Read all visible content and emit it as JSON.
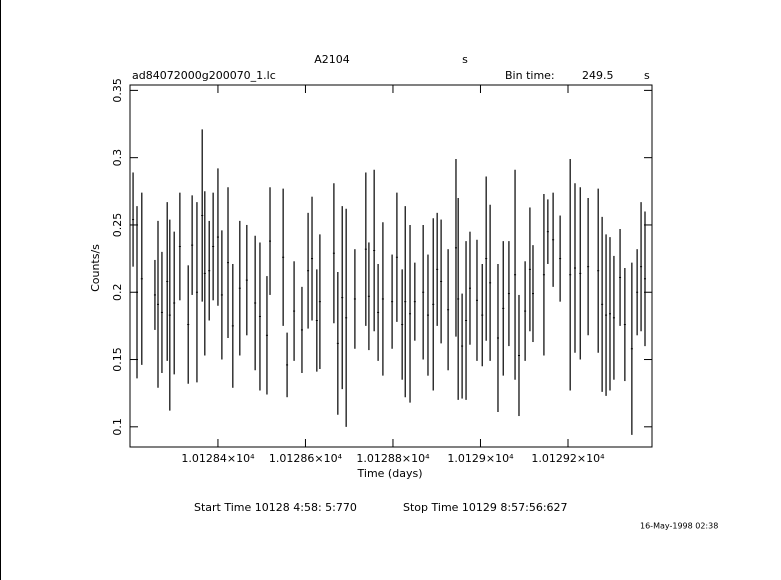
{
  "chart_data": {
    "type": "errorbar",
    "title": "A2104",
    "title_unit": "s",
    "file_name": "ad84072000g200070_1.lc",
    "bin_time_label": "Bin time:",
    "bin_time": 249.5,
    "bin_time_unit": "s",
    "ylabel": "Counts/s",
    "xlabel": "Time (days)",
    "start_time": "Start Time 10128  4:58: 5:770",
    "stop_time": "Stop Time 10129  8:57:56:627",
    "date_stamp": "16-May-1998 02:38",
    "color": "#000000",
    "xlim": [
      10128.199,
      10129.392
    ],
    "ylim": [
      0.085,
      0.354
    ],
    "xticks": [
      {
        "value": 10128.4,
        "label": "1.01284×10⁴"
      },
      {
        "value": 10128.6,
        "label": "1.01286×10⁴"
      },
      {
        "value": 10128.8,
        "label": "1.01288×10⁴"
      },
      {
        "value": 10129.0,
        "label": "1.0129×10⁴"
      },
      {
        "value": 10129.2,
        "label": "1.01292×10⁴"
      }
    ],
    "yticks": [
      0.1,
      0.15,
      0.2,
      0.25,
      0.3,
      0.35
    ],
    "x": [
      10128.206,
      10128.215,
      10128.226,
      10128.256,
      10128.263,
      10128.272,
      10128.284,
      10128.29,
      10128.3,
      10128.313,
      10128.332,
      10128.341,
      10128.352,
      10128.364,
      10128.37,
      10128.38,
      10128.389,
      10128.4,
      10128.409,
      10128.423,
      10128.434,
      10128.45,
      10128.466,
      10128.485,
      10128.496,
      10128.512,
      10128.519,
      10128.549,
      10128.558,
      10128.574,
      10128.592,
      10128.606,
      10128.615,
      10128.626,
      10128.633,
      10128.665,
      10128.674,
      10128.684,
      10128.693,
      10128.713,
      10128.738,
      10128.745,
      10128.757,
      10128.766,
      10128.777,
      10128.798,
      10128.809,
      10128.821,
      10128.828,
      10128.839,
      10128.85,
      10128.869,
      10128.88,
      10128.892,
      10128.901,
      10128.91,
      10128.926,
      10128.944,
      10128.949,
      10128.958,
      10128.967,
      10128.976,
      10128.992,
      10129.004,
      10129.013,
      10129.022,
      10129.04,
      10129.052,
      10129.065,
      10129.079,
      10129.088,
      10129.102,
      10129.113,
      10129.12,
      10129.145,
      10129.154,
      10129.166,
      10129.182,
      10129.205,
      10129.216,
      10129.228,
      10129.246,
      10129.269,
      10129.278,
      10129.287,
      10129.296,
      10129.305,
      10129.319,
      10129.33,
      10129.346,
      10129.358,
      10129.367,
      10129.376
    ],
    "values": [
      0.254,
      0.2,
      0.21,
      0.198,
      0.191,
      0.185,
      0.208,
      0.183,
      0.192,
      0.234,
      0.176,
      0.235,
      0.2,
      0.257,
      0.214,
      0.216,
      0.234,
      0.241,
      0.198,
      0.222,
      0.175,
      0.203,
      0.209,
      0.192,
      0.182,
      0.168,
      0.238,
      0.226,
      0.146,
      0.186,
      0.172,
      0.216,
      0.225,
      0.179,
      0.193,
      0.229,
      0.162,
      0.196,
      0.181,
      0.195,
      0.232,
      0.197,
      0.231,
      0.185,
      0.195,
      0.193,
      0.226,
      0.176,
      0.193,
      0.184,
      0.193,
      0.2,
      0.183,
      0.191,
      0.217,
      0.208,
      0.187,
      0.233,
      0.195,
      0.16,
      0.179,
      0.203,
      0.194,
      0.183,
      0.225,
      0.207,
      0.166,
      0.188,
      0.199,
      0.213,
      0.153,
      0.186,
      0.217,
      0.199,
      0.213,
      0.245,
      0.239,
      0.225,
      0.213,
      0.218,
      0.214,
      0.219,
      0.216,
      0.191,
      0.183,
      0.184,
      0.181,
      0.211,
      0.176,
      0.158,
      0.2,
      0.219,
      0.21
    ],
    "errors": [
      0.035,
      0.064,
      0.064,
      0.026,
      0.062,
      0.045,
      0.059,
      0.071,
      0.053,
      0.04,
      0.044,
      0.037,
      0.067,
      0.064,
      0.061,
      0.037,
      0.04,
      0.051,
      0.048,
      0.056,
      0.046,
      0.05,
      0.041,
      0.05,
      0.055,
      0.044,
      0.04,
      0.051,
      0.024,
      0.037,
      0.032,
      0.043,
      0.046,
      0.038,
      0.05,
      0.052,
      0.053,
      0.068,
      0.081,
      0.037,
      0.057,
      0.04,
      0.06,
      0.036,
      0.057,
      0.035,
      0.048,
      0.041,
      0.071,
      0.066,
      0.029,
      0.05,
      0.045,
      0.064,
      0.042,
      0.046,
      0.045,
      0.066,
      0.075,
      0.039,
      0.059,
      0.042,
      0.045,
      0.038,
      0.061,
      0.058,
      0.055,
      0.05,
      0.039,
      0.078,
      0.045,
      0.037,
      0.046,
      0.036,
      0.06,
      0.024,
      0.035,
      0.032,
      0.086,
      0.063,
      0.064,
      0.051,
      0.061,
      0.065,
      0.06,
      0.057,
      0.046,
      0.036,
      0.042,
      0.064,
      0.032,
      0.048,
      0.05
    ]
  }
}
